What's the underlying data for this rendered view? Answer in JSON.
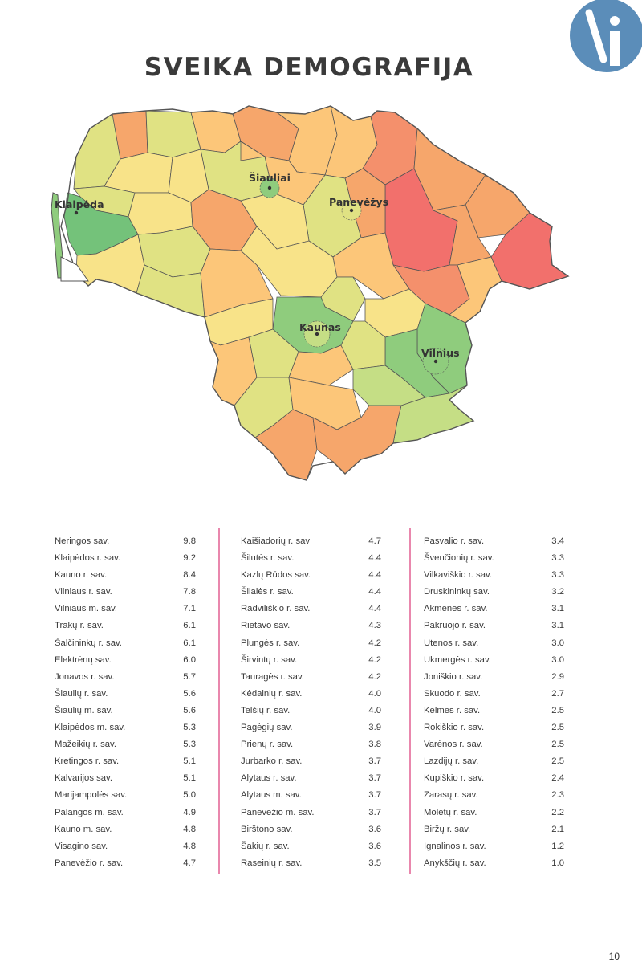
{
  "title": "SVEIKA DEMOGRAFIJA",
  "logo": {
    "letter": "i",
    "color": "#5b8db9"
  },
  "map": {
    "cities": [
      {
        "name": "Klaipėda"
      },
      {
        "name": "Šiauliai"
      },
      {
        "name": "Panevėžys"
      },
      {
        "name": "Kaunas"
      },
      {
        "name": "Vilnius"
      }
    ],
    "colors": {
      "darkgreen": "#74c27a",
      "green": "#8fcc7d",
      "lightgreen": "#c5de85",
      "yellowgreen": "#e0e283",
      "yellow": "#f8e389",
      "lightorange": "#fcc679",
      "orange": "#f6a66b",
      "salmon": "#f4906c",
      "red": "#f2706c",
      "border": "#555555"
    }
  },
  "table": {
    "columns": [
      [
        {
          "name": "Neringos sav.",
          "value": "9.8"
        },
        {
          "name": "Klaipėdos r. sav.",
          "value": "9.2"
        },
        {
          "name": "Kauno r. sav.",
          "value": "8.4"
        },
        {
          "name": "Vilniaus r. sav.",
          "value": "7.8"
        },
        {
          "name": "Vilniaus m. sav.",
          "value": "7.1"
        },
        {
          "name": "Trakų r. sav.",
          "value": "6.1"
        },
        {
          "name": "Šalčininkų r. sav.",
          "value": "6.1"
        },
        {
          "name": "Elektrėnų sav.",
          "value": "6.0"
        },
        {
          "name": "Jonavos r. sav.",
          "value": "5.7"
        },
        {
          "name": "Šiaulių r. sav.",
          "value": "5.6"
        },
        {
          "name": "Šiaulių m. sav.",
          "value": "5.6"
        },
        {
          "name": "Klaipėdos m. sav.",
          "value": "5.3"
        },
        {
          "name": "Mažeikių r. sav.",
          "value": "5.3"
        },
        {
          "name": "Kretingos r. sav.",
          "value": "5.1"
        },
        {
          "name": "Kalvarijos sav.",
          "value": "5.1"
        },
        {
          "name": "Marijampolės sav.",
          "value": "5.0"
        },
        {
          "name": "Palangos m. sav.",
          "value": "4.9"
        },
        {
          "name": "Kauno m. sav.",
          "value": "4.8"
        },
        {
          "name": "Visagino sav.",
          "value": "4.8"
        },
        {
          "name": "Panevėžio r. sav.",
          "value": "4.7"
        }
      ],
      [
        {
          "name": "Kaišiadorių r. sav",
          "value": "4.7"
        },
        {
          "name": "Šilutės r. sav.",
          "value": "4.4"
        },
        {
          "name": "Kazlų Rūdos sav.",
          "value": "4.4"
        },
        {
          "name": "Šilalės r. sav.",
          "value": "4.4"
        },
        {
          "name": "Radviliškio r. sav.",
          "value": "4.4"
        },
        {
          "name": "Rietavo sav.",
          "value": "4.3"
        },
        {
          "name": "Plungės r. sav.",
          "value": "4.2"
        },
        {
          "name": "Širvintų r. sav.",
          "value": "4.2"
        },
        {
          "name": "Tauragės r. sav.",
          "value": "4.2"
        },
        {
          "name": "Kėdainių r. sav.",
          "value": "4.0"
        },
        {
          "name": "Telšių r. sav.",
          "value": "4.0"
        },
        {
          "name": "Pagėgių sav.",
          "value": "3.9"
        },
        {
          "name": "Prienų r. sav.",
          "value": "3.8"
        },
        {
          "name": "Jurbarko r. sav.",
          "value": "3.7"
        },
        {
          "name": "Alytaus r. sav.",
          "value": "3.7"
        },
        {
          "name": "Alytaus m. sav.",
          "value": "3.7"
        },
        {
          "name": "Panevėžio m. sav.",
          "value": "3.7"
        },
        {
          "name": "Birštono sav.",
          "value": "3.6"
        },
        {
          "name": "Šakių r. sav.",
          "value": "3.6"
        },
        {
          "name": "Raseinių r. sav.",
          "value": "3.5"
        }
      ],
      [
        {
          "name": "Pasvalio r. sav.",
          "value": "3.4"
        },
        {
          "name": "Švenčionių r. sav.",
          "value": "3.3"
        },
        {
          "name": "Vilkaviškio r. sav.",
          "value": "3.3"
        },
        {
          "name": "Druskininkų sav.",
          "value": "3.2"
        },
        {
          "name": "Akmenės r. sav.",
          "value": "3.1"
        },
        {
          "name": "Pakruojo r. sav.",
          "value": "3.1"
        },
        {
          "name": "Utenos r. sav.",
          "value": "3.0"
        },
        {
          "name": "Ukmergės r. sav.",
          "value": "3.0"
        },
        {
          "name": "Joniškio r. sav.",
          "value": "2.9"
        },
        {
          "name": "Skuodo r. sav.",
          "value": "2.7"
        },
        {
          "name": "Kelmės r. sav.",
          "value": "2.5"
        },
        {
          "name": "Rokiškio r. sav.",
          "value": "2.5"
        },
        {
          "name": "Varėnos r. sav.",
          "value": "2.5"
        },
        {
          "name": "Lazdijų r. sav.",
          "value": "2.5"
        },
        {
          "name": "Kupiškio r. sav.",
          "value": "2.4"
        },
        {
          "name": "Zarasų r. sav.",
          "value": "2.3"
        },
        {
          "name": "Molėtų r. sav.",
          "value": "2.2"
        },
        {
          "name": "Biržų r. sav.",
          "value": "2.1"
        },
        {
          "name": "Ignalinos r. sav.",
          "value": "1.2"
        },
        {
          "name": "Anykščių r. sav.",
          "value": "1.0"
        }
      ]
    ]
  },
  "page_number": "10"
}
